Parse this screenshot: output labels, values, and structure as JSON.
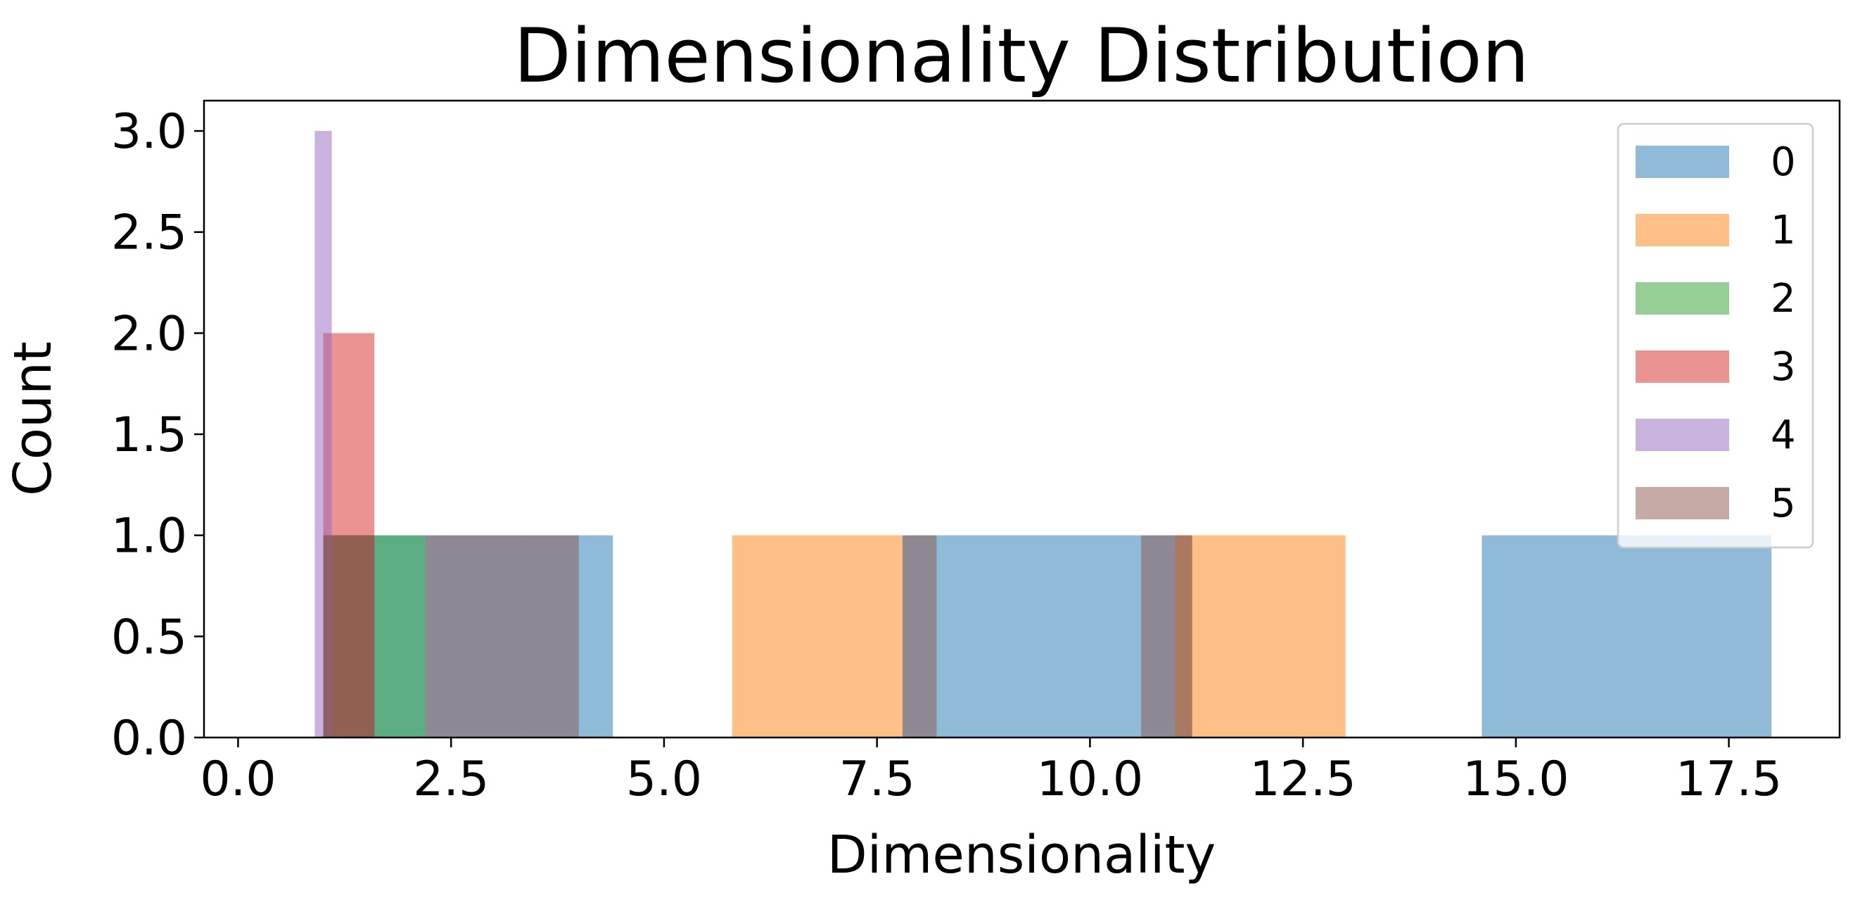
{
  "chart_data": {
    "type": "bar",
    "subtype": "histogram",
    "title": "Dimensionality Distribution",
    "xlabel": "Dimensionality",
    "ylabel": "Count",
    "xlim": [
      -0.4,
      18.8
    ],
    "ylim": [
      0,
      3.15
    ],
    "xticks": [
      0.0,
      2.5,
      5.0,
      7.5,
      10.0,
      12.5,
      15.0,
      17.5
    ],
    "xtick_labels": [
      "0.0",
      "2.5",
      "5.0",
      "7.5",
      "10.0",
      "12.5",
      "15.0",
      "17.5"
    ],
    "yticks": [
      0.0,
      0.5,
      1.0,
      1.5,
      2.0,
      2.5,
      3.0
    ],
    "ytick_labels": [
      "0.0",
      "0.5",
      "1.0",
      "1.5",
      "2.0",
      "2.5",
      "3.0"
    ],
    "grid": false,
    "legend_position": "top-right",
    "bar_opacity": 0.5,
    "series": [
      {
        "name": "0",
        "color": "#1f77b4",
        "bins": [
          {
            "x0": 1.0,
            "x1": 4.4,
            "count": 1
          },
          {
            "x0": 7.8,
            "x1": 11.2,
            "count": 1
          },
          {
            "x0": 14.6,
            "x1": 18.0,
            "count": 1
          }
        ]
      },
      {
        "name": "1",
        "color": "#ff7f0e",
        "bins": [
          {
            "x0": 5.8,
            "x1": 7.8,
            "count": 1
          },
          {
            "x0": 11.0,
            "x1": 13.0,
            "count": 1
          }
        ]
      },
      {
        "name": "2",
        "color": "#2ca02c",
        "bins": [
          {
            "x0": 1.0,
            "x1": 2.2,
            "count": 1
          }
        ]
      },
      {
        "name": "3",
        "color": "#d62728",
        "bins": [
          {
            "x0": 1.0,
            "x1": 1.6,
            "count": 2
          }
        ]
      },
      {
        "name": "4",
        "color": "#9467bd",
        "bins": [
          {
            "x0": 0.9,
            "x1": 1.1,
            "count": 3
          }
        ]
      },
      {
        "name": "5",
        "color": "#8c564b",
        "bins": [
          {
            "x0": 1.0,
            "x1": 1.6,
            "count": 1
          },
          {
            "x0": 2.2,
            "x1": 3.4,
            "count": 1
          },
          {
            "x0": 3.4,
            "x1": 4.0,
            "count": 1
          },
          {
            "x0": 7.8,
            "x1": 8.2,
            "count": 1
          },
          {
            "x0": 10.6,
            "x1": 11.2,
            "count": 1
          }
        ]
      }
    ]
  }
}
